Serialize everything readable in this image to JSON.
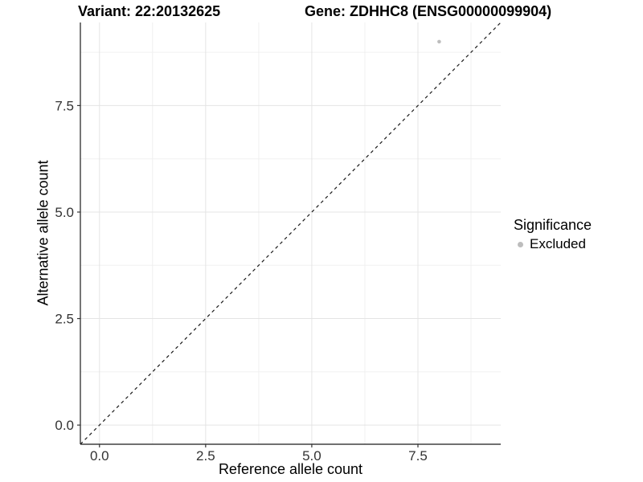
{
  "titles": {
    "variant": "Variant: 22:20132625",
    "gene": "Gene: ZDHHC8 (ENSG00000099904)"
  },
  "chart_data": {
    "type": "scatter",
    "title_left": "Variant: 22:20132625",
    "title_right": "Gene: ZDHHC8 (ENSG00000099904)",
    "xlabel": "Reference allele count",
    "ylabel": "Alternative allele count",
    "xlim": [
      -0.45,
      9.45
    ],
    "ylim": [
      -0.45,
      9.45
    ],
    "x_ticks": {
      "values": [
        0,
        2.5,
        5,
        7.5
      ],
      "labels": [
        "0.0",
        "2.5",
        "5.0",
        "7.5"
      ]
    },
    "y_ticks": {
      "values": [
        0,
        2.5,
        5,
        7.5
      ],
      "labels": [
        "0.0",
        "2.5",
        "5.0",
        "7.5"
      ]
    },
    "x_minor": [
      1.25,
      3.75,
      6.25,
      8.75
    ],
    "y_minor": [
      1.25,
      3.75,
      6.25,
      8.75
    ],
    "grid": true,
    "points": [
      {
        "x": 8,
        "y": 9,
        "significance": "Excluded"
      }
    ],
    "reference_line": {
      "type": "abline",
      "slope": 1,
      "intercept": 0,
      "style": "dashed"
    },
    "legend": {
      "position": "right",
      "title": "Significance",
      "items": [
        {
          "label": "Excluded",
          "color": "#bdbdbd"
        }
      ]
    },
    "colors": {
      "point": "#bdbdbd",
      "ref_line": "#1a1a1a",
      "axis_line": "#1a1a1a",
      "tick_mark": "#333333",
      "tick_label": "#333333",
      "grid_major": "#e4e4e4",
      "grid_minor": "#f0f0f0",
      "background": "#ffffff"
    }
  }
}
